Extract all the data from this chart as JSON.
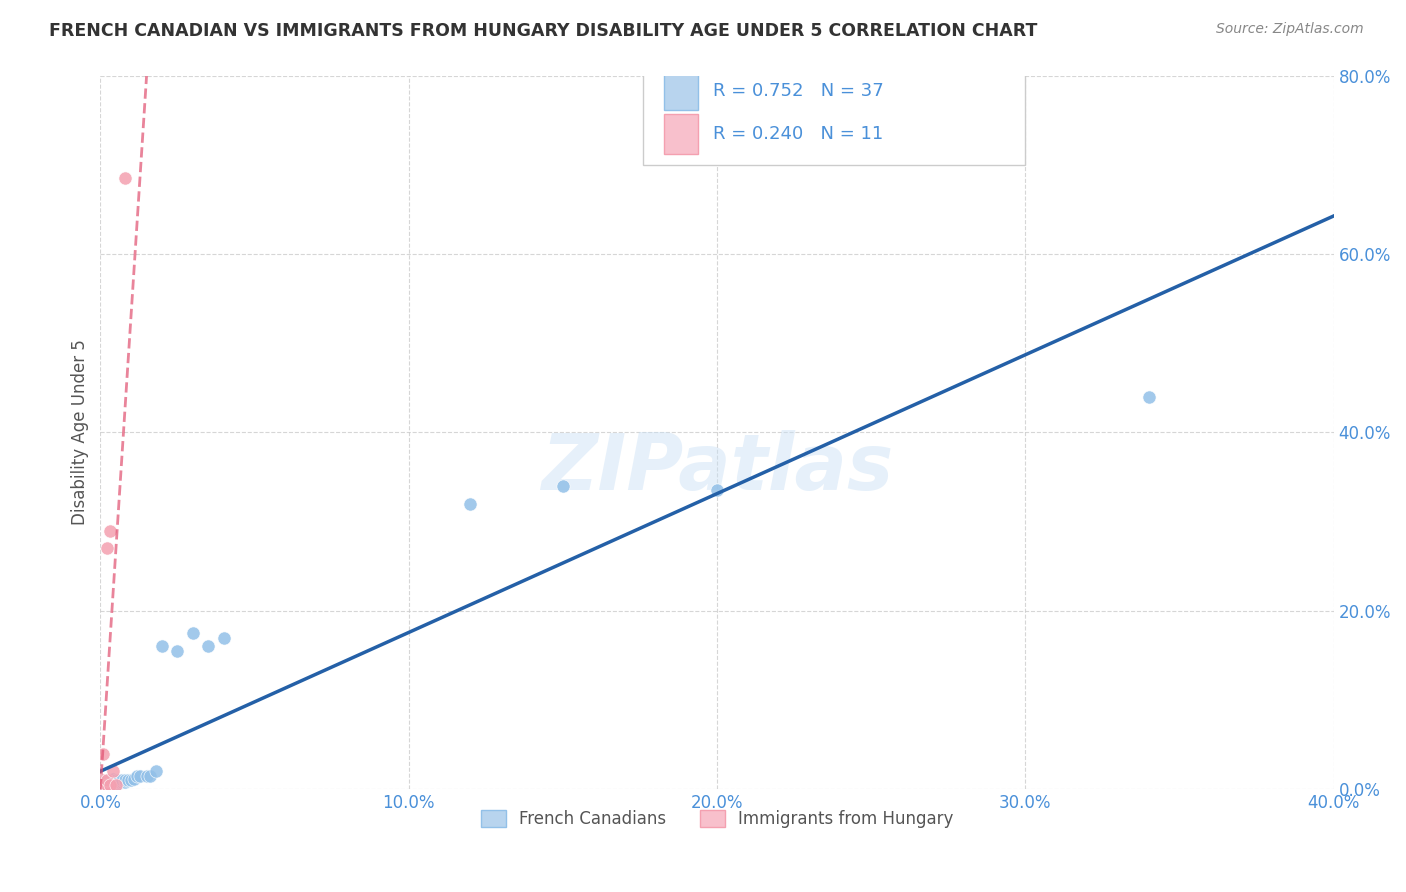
{
  "title": "FRENCH CANADIAN VS IMMIGRANTS FROM HUNGARY DISABILITY AGE UNDER 5 CORRELATION CHART",
  "source": "Source: ZipAtlas.com",
  "ylabel": "Disability Age Under 5",
  "watermark": "ZIPatlas",
  "xlim": [
    0.0,
    0.4
  ],
  "ylim": [
    0.0,
    0.8
  ],
  "xticks": [
    0.0,
    0.1,
    0.2,
    0.3,
    0.4
  ],
  "yticks": [
    0.0,
    0.2,
    0.4,
    0.6,
    0.8
  ],
  "xtick_labels": [
    "0.0%",
    "10.0%",
    "20.0%",
    "30.0%",
    "40.0%"
  ],
  "ytick_labels": [
    "0.0%",
    "20.0%",
    "40.0%",
    "60.0%",
    "80.0%"
  ],
  "series1_name": "French Canadians",
  "series1_color": "#92c0e8",
  "series1_R": 0.752,
  "series1_N": 37,
  "series1_line_color": "#2460a7",
  "series1_x": [
    0.001,
    0.001,
    0.002,
    0.002,
    0.002,
    0.003,
    0.003,
    0.003,
    0.004,
    0.004,
    0.004,
    0.005,
    0.005,
    0.005,
    0.006,
    0.006,
    0.007,
    0.007,
    0.008,
    0.008,
    0.009,
    0.01,
    0.011,
    0.012,
    0.013,
    0.015,
    0.016,
    0.018,
    0.02,
    0.025,
    0.03,
    0.035,
    0.04,
    0.12,
    0.15,
    0.2,
    0.34
  ],
  "series1_y": [
    0.005,
    0.008,
    0.005,
    0.008,
    0.01,
    0.005,
    0.008,
    0.01,
    0.008,
    0.01,
    0.012,
    0.005,
    0.008,
    0.01,
    0.008,
    0.01,
    0.008,
    0.01,
    0.008,
    0.01,
    0.01,
    0.01,
    0.012,
    0.015,
    0.015,
    0.015,
    0.015,
    0.02,
    0.16,
    0.155,
    0.175,
    0.16,
    0.17,
    0.32,
    0.34,
    0.335,
    0.44
  ],
  "series2_name": "Immigrants from Hungary",
  "series2_color": "#f4a0b0",
  "series2_R": 0.24,
  "series2_N": 11,
  "series2_line_color": "#e05070",
  "series2_x": [
    0.001,
    0.001,
    0.001,
    0.002,
    0.002,
    0.002,
    0.003,
    0.003,
    0.004,
    0.005,
    0.008
  ],
  "series2_y": [
    0.005,
    0.01,
    0.04,
    0.005,
    0.01,
    0.27,
    0.005,
    0.29,
    0.02,
    0.005,
    0.685
  ],
  "background_color": "#ffffff",
  "grid_color": "#cccccc",
  "title_color": "#333333",
  "tick_color": "#4a90d9",
  "legend_R_color": "#4a90d9",
  "legend_N_color": "#cc2255"
}
